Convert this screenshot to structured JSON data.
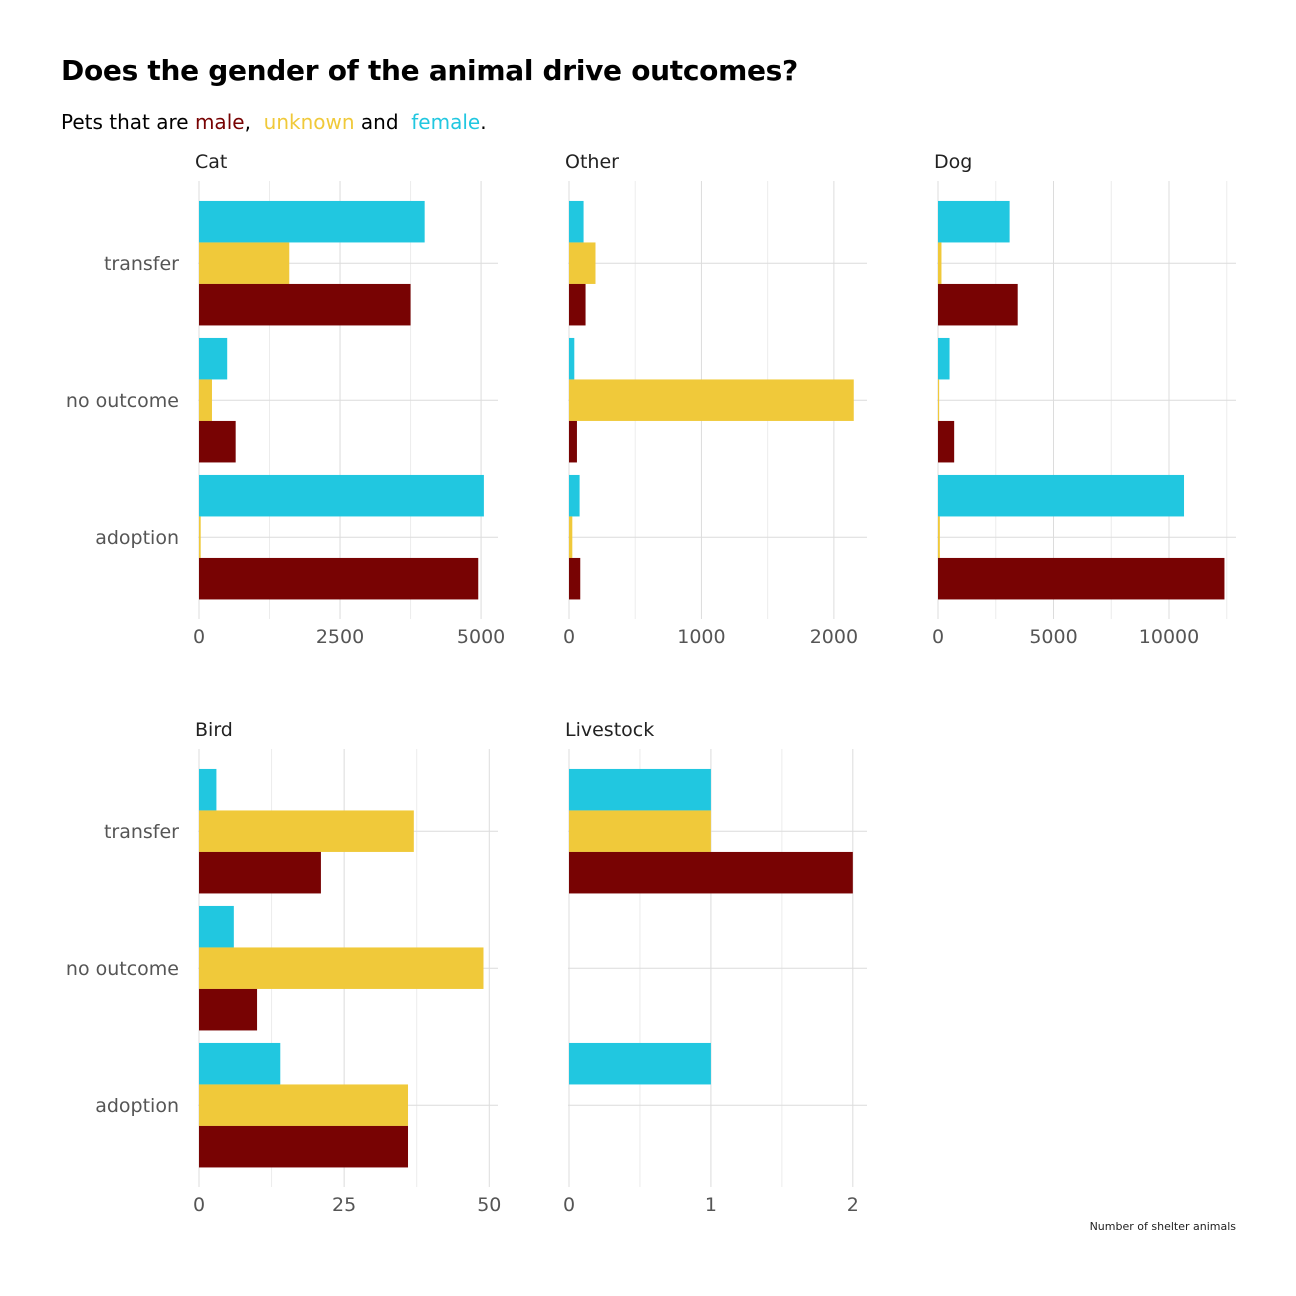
{
  "title": "Does the gender of the animal drive outcomes?",
  "subtitle": {
    "prefix": "Pets that are ",
    "male": "male",
    "sep1": ",  ",
    "unknown": "unknown",
    "sep2": " and  ",
    "female": "female",
    "suffix": "."
  },
  "caption": "Number of shelter animals",
  "colors": {
    "male": "#780303",
    "unknown": "#F0C93A",
    "female": "#21C7E0"
  },
  "chart_data": [
    {
      "type": "bar",
      "facet": "Cat",
      "categories": [
        "transfer",
        "no outcome",
        "adoption"
      ],
      "xlim": [
        0,
        5300
      ],
      "ticks": [
        0,
        2500,
        5000
      ],
      "series": [
        {
          "name": "female",
          "values": [
            4000,
            500,
            5050
          ]
        },
        {
          "name": "unknown",
          "values": [
            1600,
            230,
            30
          ]
        },
        {
          "name": "male",
          "values": [
            3750,
            650,
            4950
          ]
        }
      ]
    },
    {
      "type": "bar",
      "facet": "Other",
      "categories": [
        "transfer",
        "no outcome",
        "adoption"
      ],
      "xlim": [
        0,
        2250
      ],
      "ticks": [
        0,
        1000,
        2000
      ],
      "series": [
        {
          "name": "female",
          "values": [
            110,
            40,
            80
          ]
        },
        {
          "name": "unknown",
          "values": [
            200,
            2150,
            25
          ]
        },
        {
          "name": "male",
          "values": [
            125,
            60,
            85
          ]
        }
      ]
    },
    {
      "type": "bar",
      "facet": "Dog",
      "categories": [
        "transfer",
        "no outcome",
        "adoption"
      ],
      "xlim": [
        0,
        12900
      ],
      "ticks": [
        0,
        5000,
        10000
      ],
      "series": [
        {
          "name": "female",
          "values": [
            3100,
            500,
            10650
          ]
        },
        {
          "name": "unknown",
          "values": [
            150,
            50,
            80
          ]
        },
        {
          "name": "male",
          "values": [
            3450,
            700,
            12400
          ]
        }
      ]
    },
    {
      "type": "bar",
      "facet": "Bird",
      "categories": [
        "transfer",
        "no outcome",
        "adoption"
      ],
      "xlim": [
        0,
        51.5
      ],
      "ticks": [
        0,
        25,
        50
      ],
      "series": [
        {
          "name": "female",
          "values": [
            3,
            6,
            14
          ]
        },
        {
          "name": "unknown",
          "values": [
            37,
            49,
            36
          ]
        },
        {
          "name": "male",
          "values": [
            21,
            10,
            36
          ]
        }
      ]
    },
    {
      "type": "bar",
      "facet": "Livestock",
      "categories": [
        "transfer",
        "no outcome",
        "adoption"
      ],
      "xlim": [
        0,
        2.1
      ],
      "ticks": [
        0,
        1,
        2
      ],
      "series": [
        {
          "name": "female",
          "values": [
            1,
            0,
            1
          ]
        },
        {
          "name": "unknown",
          "values": [
            1,
            0,
            0
          ]
        },
        {
          "name": "male",
          "values": [
            2,
            0,
            0
          ]
        }
      ]
    }
  ]
}
